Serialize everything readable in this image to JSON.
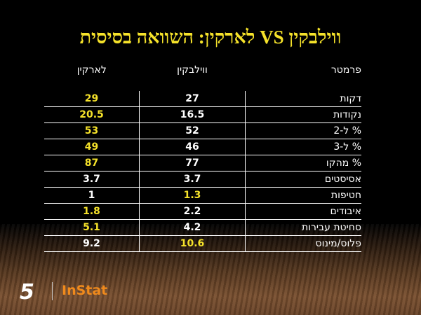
{
  "title": "ווילבקין VS לארקין: השוואה בסיסית",
  "colors": {
    "highlight": "#f5e22a",
    "text": "#ffffff",
    "brand": "#f08a1c"
  },
  "table": {
    "headers": [
      "פרמטר",
      "ווילבקין",
      "לארקין"
    ],
    "rows": [
      {
        "param": "דקות",
        "wilbekin": "27",
        "larkin": "29",
        "leader": "larkin"
      },
      {
        "param": "נקודות",
        "wilbekin": "16.5",
        "larkin": "20.5",
        "leader": "larkin"
      },
      {
        "param": "% ל-2",
        "wilbekin": "52",
        "larkin": "53",
        "leader": "larkin"
      },
      {
        "param": "% ל-3",
        "wilbekin": "46",
        "larkin": "49",
        "leader": "larkin"
      },
      {
        "param": "% מהקו",
        "wilbekin": "77",
        "larkin": "87",
        "leader": "larkin"
      },
      {
        "param": "אסיסטים",
        "wilbekin": "3.7",
        "larkin": "3.7",
        "leader": "none"
      },
      {
        "param": "חטיפות",
        "wilbekin": "1.3",
        "larkin": "1",
        "leader": "wilbekin"
      },
      {
        "param": "איבודים",
        "wilbekin": "2.2",
        "larkin": "1.8",
        "leader": "larkin"
      },
      {
        "param": "סחיטת עבירות",
        "wilbekin": "4.2",
        "larkin": "5.1",
        "leader": "larkin"
      },
      {
        "param": "פלוס/מינוס",
        "wilbekin": "10.6",
        "larkin": "9.2",
        "leader": "wilbekin"
      }
    ]
  },
  "logos": {
    "channel": "5 ערוץ הספורט",
    "instat": "InStat"
  }
}
